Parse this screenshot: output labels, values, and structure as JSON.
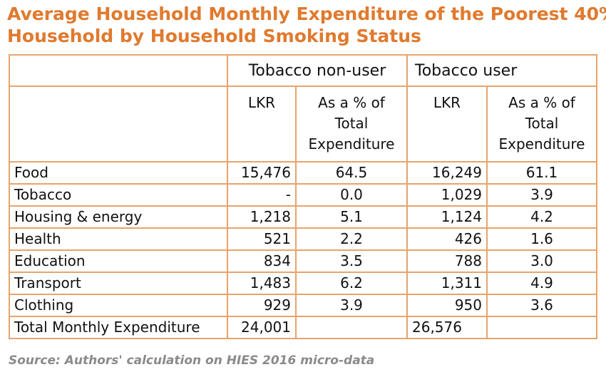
{
  "title_line1": "Average Household Monthly Expenditure of the Poorest 40%",
  "title_line2": "Household by Household Smoking Status",
  "groups": [
    "Tobacco non-user",
    "Tobacco user"
  ],
  "subheaders": {
    "lkr": "LKR",
    "pct_line1": "As a % of",
    "pct_line2": "Total",
    "pct_line3": "Expenditure"
  },
  "rows": [
    {
      "label": "Food",
      "nonuser_lkr": "15,476",
      "nonuser_pct": "64.5",
      "user_lkr": "16,249",
      "user_pct": "61.1"
    },
    {
      "label": "Tobacco",
      "nonuser_lkr": "-",
      "nonuser_pct": "0.0",
      "user_lkr": "1,029",
      "user_pct": "3.9"
    },
    {
      "label": "Housing & energy",
      "nonuser_lkr": "1,218",
      "nonuser_pct": "5.1",
      "user_lkr": "1,124",
      "user_pct": "4.2"
    },
    {
      "label": "Health",
      "nonuser_lkr": "521",
      "nonuser_pct": "2.2",
      "user_lkr": "426",
      "user_pct": "1.6"
    },
    {
      "label": "Education",
      "nonuser_lkr": "834",
      "nonuser_pct": "3.5",
      "user_lkr": "788",
      "user_pct": "3.0"
    },
    {
      "label": "Transport",
      "nonuser_lkr": "1,483",
      "nonuser_pct": "6.2",
      "user_lkr": "1,311",
      "user_pct": "4.9"
    },
    {
      "label": "Clothing",
      "nonuser_lkr": "929",
      "nonuser_pct": "3.9",
      "user_lkr": "950",
      "user_pct": "3.6"
    },
    {
      "label": "Total Monthly Expenditure",
      "nonuser_lkr": "24,001",
      "nonuser_pct": "",
      "user_lkr": "26,576",
      "user_pct": ""
    }
  ],
  "source": "Source: Authors' calculation on HIES 2016 micro-data",
  "colors": {
    "title": "#E07A2E",
    "border": "#E8A36B",
    "source": "#8A8A8A"
  }
}
